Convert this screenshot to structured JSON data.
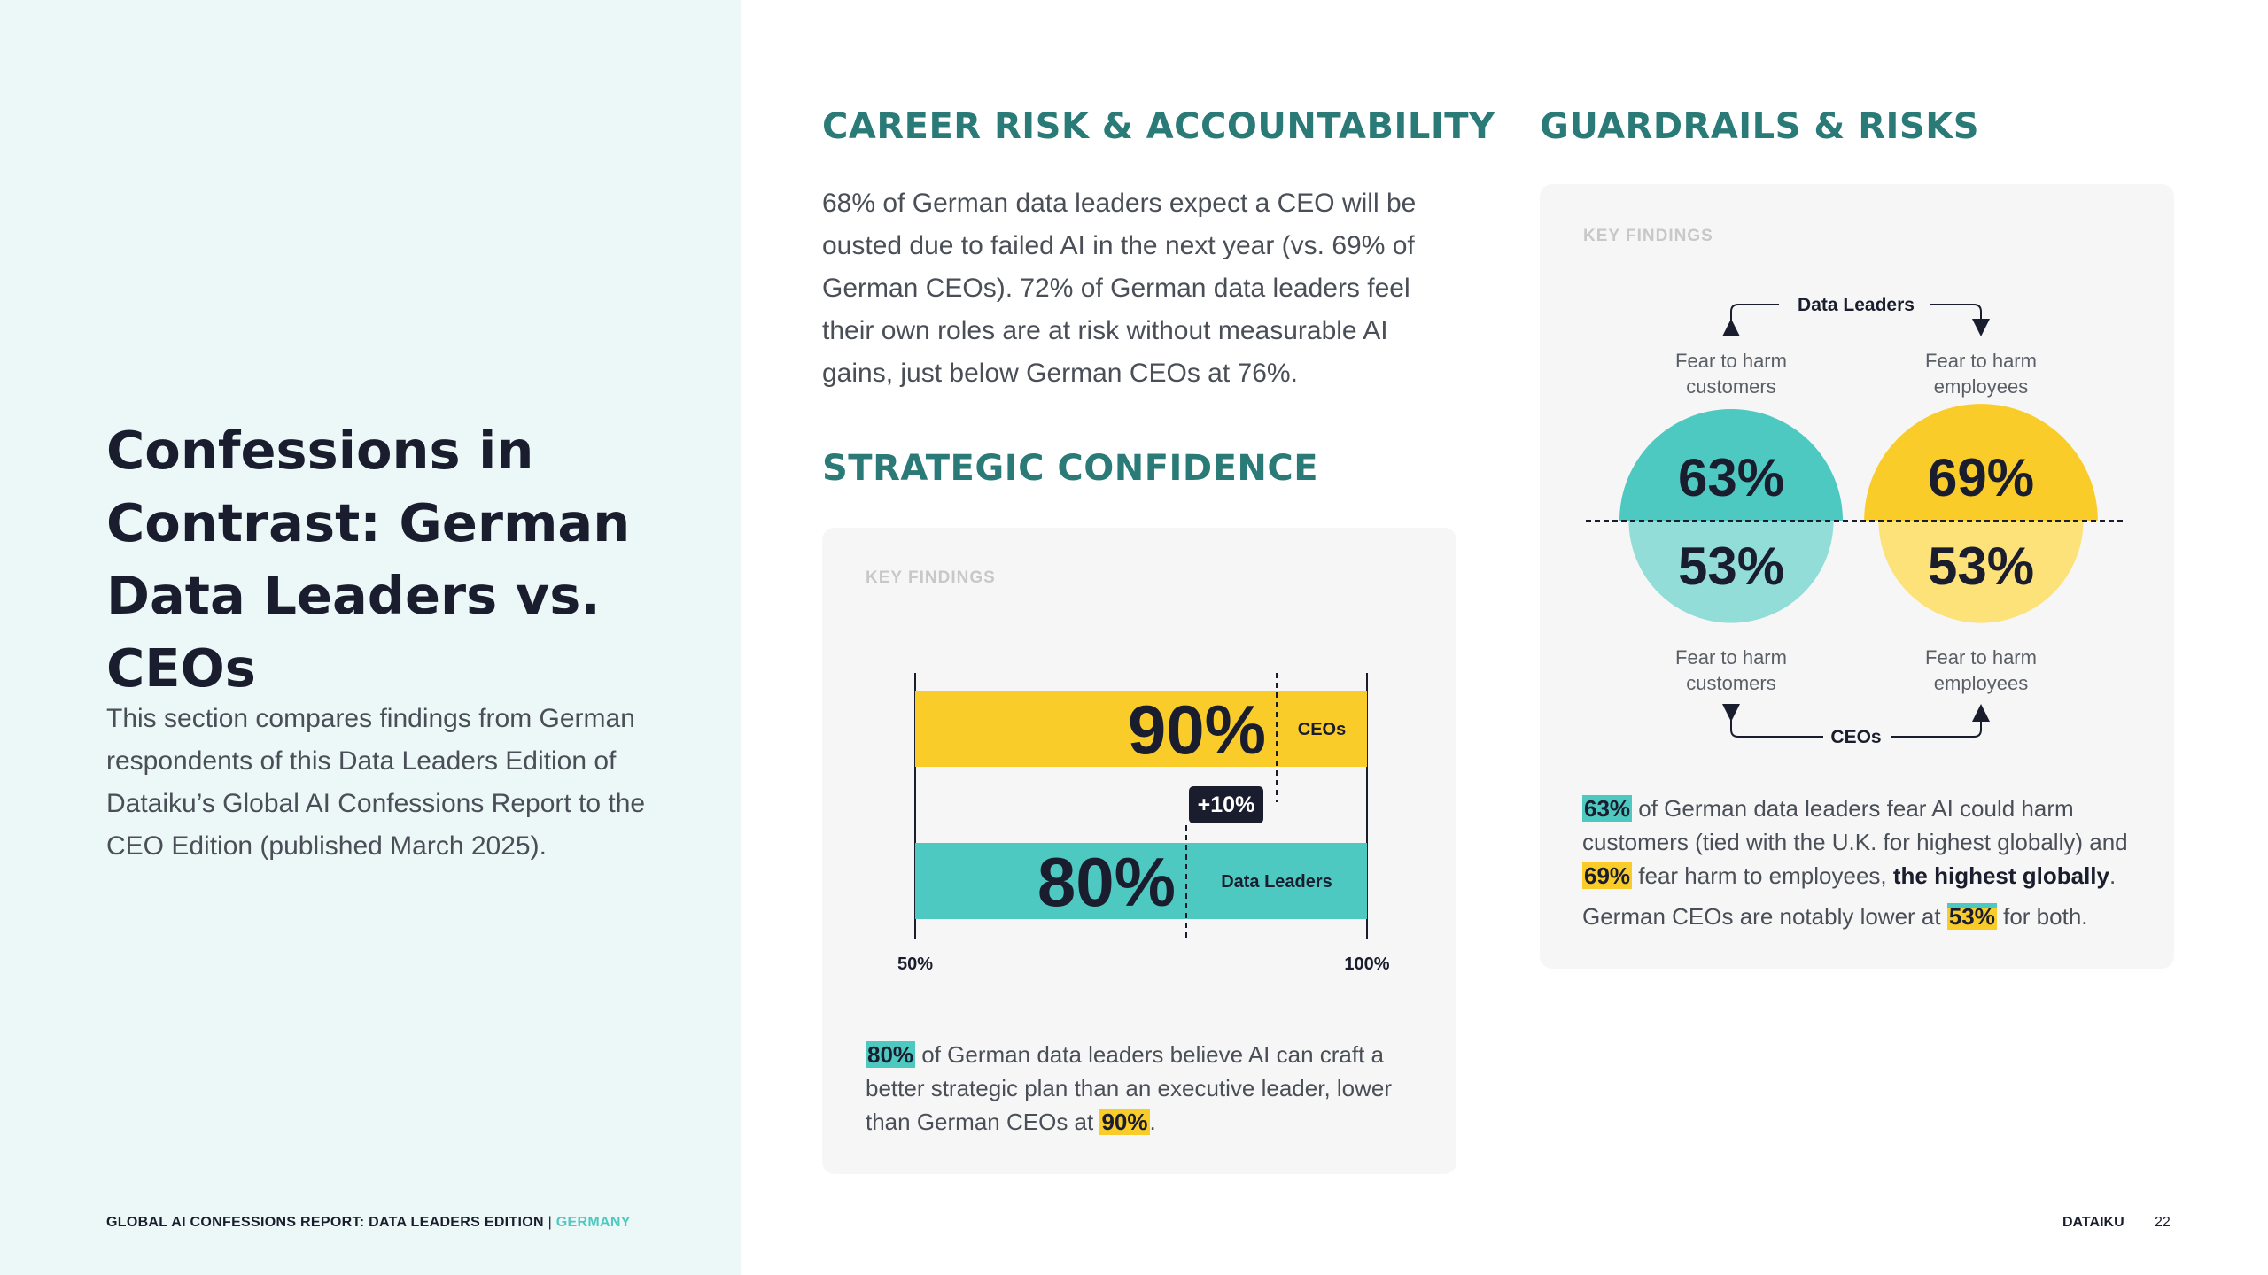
{
  "left": {
    "title": "Confessions in Contrast: German Data Leaders vs. CEOs",
    "intro": "This section compares findings from German respondents of this Data Leaders Edition of Dataiku’s Global AI Confessions Report to the CEO Edition (published March 2025)."
  },
  "career": {
    "heading": "CAREER RISK & ACCOUNTABILITY",
    "body": "68% of German data leaders expect a CEO will be ousted due to failed AI in the next year (vs. 69% of German CEOs). 72% of German data leaders feel their own roles are at risk without measurable AI gains, just below German CEOs at 76%."
  },
  "strategic": {
    "heading": "STRATEGIC CONFIDENCE",
    "key_findings": "KEY FINDINGS",
    "finding_hl1": "80%",
    "finding_text1": " of German data leaders believe AI can craft a better strategic plan than an executive leader, lower than German CEOs at ",
    "finding_hl2": "90%",
    "finding_text2": "."
  },
  "guardrails": {
    "heading": "GUARDRAILS & RISKS",
    "key_findings": "KEY FINDINGS",
    "top_group": "Data Leaders",
    "bottom_group": "CEOs",
    "label_customers": "Fear to harm customers",
    "label_employees": "Fear to harm employees",
    "p1_hl1": "63%",
    "p1_t1": " of German data leaders fear AI could harm customers (tied with the U.K. for highest globally) and ",
    "p1_hl2": "69%",
    "p1_t2": " fear harm to employees, ",
    "p1_bold": "the highest globally",
    "p1_t3": ".",
    "p2_t1": "German CEOs are notably lower at ",
    "p2_hl": "53%",
    "p2_t2": " for both."
  },
  "chart_data": [
    {
      "type": "bar",
      "orientation": "horizontal",
      "xlim": [
        50,
        100
      ],
      "x_tick_labels": [
        "50%",
        "100%"
      ],
      "series": [
        {
          "name": "CEOs",
          "value": 90,
          "label": "90%",
          "color": "#f9cc2a"
        },
        {
          "name": "Data Leaders",
          "value": 80,
          "label": "80%",
          "color": "#4ec9c2"
        }
      ],
      "annotation": "+10%"
    },
    {
      "type": "pie",
      "layout": "split circles",
      "groups": [
        "Data Leaders",
        "CEOs"
      ],
      "categories": [
        "Fear to harm customers",
        "Fear to harm employees"
      ],
      "series": [
        {
          "name": "Data Leaders",
          "values": [
            63,
            69
          ],
          "labels": [
            "63%",
            "69%"
          ]
        },
        {
          "name": "CEOs",
          "values": [
            53,
            53
          ],
          "labels": [
            "53%",
            "53%"
          ]
        }
      ],
      "colors": {
        "customers_top": "#4ec9c2",
        "customers_bottom": "#93ddd8",
        "employees_top": "#f9cc2a",
        "employees_bottom": "#fde27a"
      }
    }
  ],
  "footer": {
    "report": "GLOBAL AI CONFESSIONS REPORT: DATA LEADERS EDITION",
    "separator": " | ",
    "country": "GERMANY",
    "brand": "DATAIKU",
    "page": "22"
  }
}
